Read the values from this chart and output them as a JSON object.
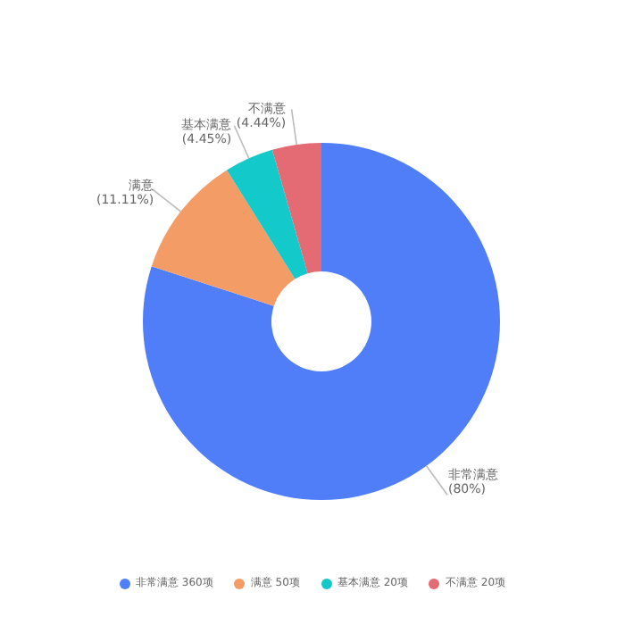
{
  "chart_data": {
    "type": "donut",
    "categories": [
      "非常满意",
      "满意",
      "基本满意",
      "不满意"
    ],
    "values": [
      360,
      50,
      20,
      20
    ],
    "colors": [
      "#4f7ef8",
      "#f39c65",
      "#14c9c9",
      "#e46b74"
    ],
    "value_labels": [
      "360项",
      "50项",
      "20项",
      "20项"
    ],
    "legend": "bottom",
    "annotations": [
      {
        "text": "(80%)",
        "x": "非常满意"
      },
      {
        "text": "(11.11%)",
        "x": "满意"
      },
      {
        "text": "(4.45%)",
        "x": "基本满意"
      },
      {
        "text": "(4.44%)",
        "x": "不满意"
      }
    ]
  }
}
